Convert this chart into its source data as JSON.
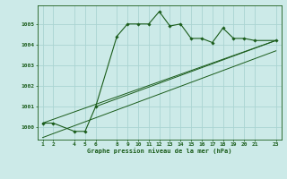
{
  "title": "Graphe pression niveau de la mer (hPa)",
  "bg_color": "#cceae8",
  "grid_color": "#aad4d2",
  "line_color": "#1a5c1a",
  "x_ticks": [
    1,
    2,
    4,
    5,
    6,
    8,
    9,
    10,
    11,
    12,
    13,
    14,
    15,
    16,
    17,
    18,
    19,
    20,
    21,
    23
  ],
  "xlim": [
    0.5,
    23.5
  ],
  "ylim": [
    999.4,
    1005.9
  ],
  "y_ticks": [
    1000,
    1001,
    1002,
    1003,
    1004,
    1005
  ],
  "series1_x": [
    1,
    2,
    4,
    5,
    6,
    8,
    9,
    10,
    11,
    12,
    13,
    14,
    15,
    16,
    17,
    18,
    19,
    20,
    21,
    23
  ],
  "series1_y": [
    1000.2,
    1000.2,
    999.8,
    999.8,
    1001.0,
    1004.4,
    1005.0,
    1005.0,
    1005.0,
    1005.6,
    1004.9,
    1005.0,
    1004.3,
    1004.3,
    1004.1,
    1004.8,
    1004.3,
    1004.3,
    1004.2,
    1004.2
  ],
  "series2_x": [
    1,
    23
  ],
  "series2_y": [
    1000.2,
    1004.2
  ],
  "series3_x": [
    1,
    23
  ],
  "series3_y": [
    999.5,
    1003.7
  ],
  "series4_x": [
    6,
    23
  ],
  "series4_y": [
    1001.0,
    1004.2
  ]
}
